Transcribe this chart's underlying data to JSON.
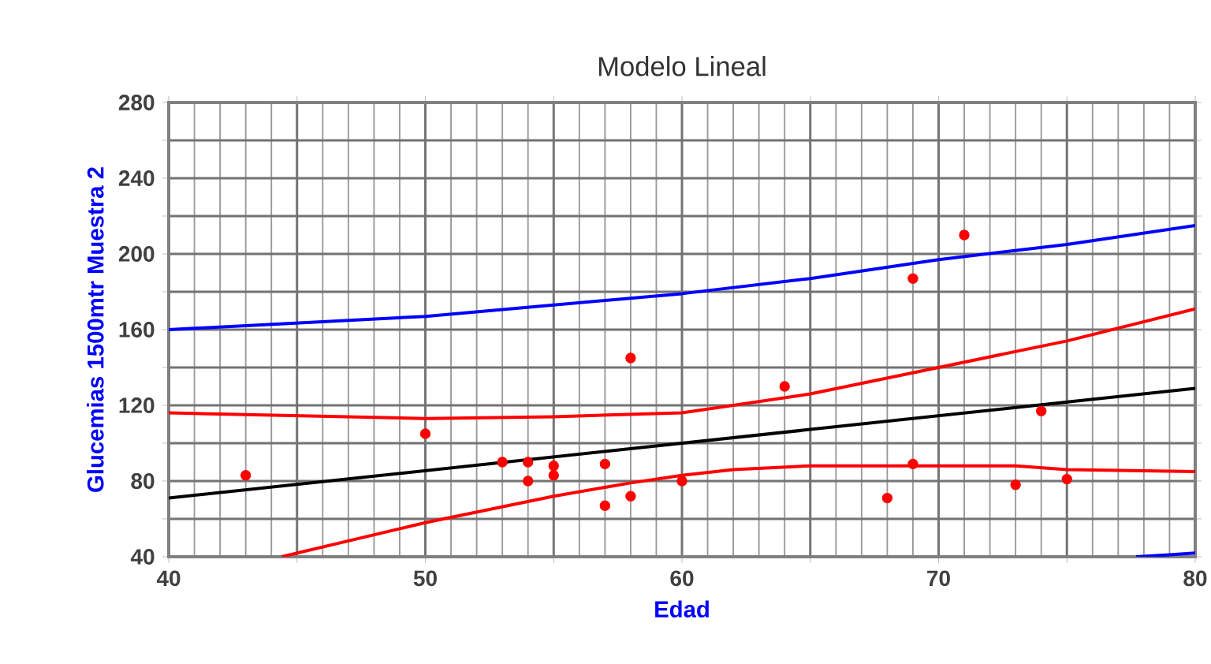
{
  "chart_data": {
    "type": "line",
    "title": "Modelo Lineal",
    "xlabel": "Edad",
    "ylabel": "Glucemias 1500mtr Muestra 2",
    "xlim": [
      40,
      80
    ],
    "ylim": [
      40,
      280
    ],
    "xticks": [
      40,
      {
        "value": 45,
        "label": null
      },
      50,
      {
        "value": 55,
        "label": null
      },
      60,
      {
        "value": 65,
        "label": null
      },
      70,
      {
        "value": 75,
        "label": null
      },
      80
    ],
    "yticks": [
      40,
      {
        "value": 60,
        "label": null
      },
      80,
      {
        "value": 100,
        "label": null
      },
      120,
      {
        "value": 140,
        "label": null
      },
      160,
      {
        "value": 180,
        "label": null
      },
      200,
      {
        "value": 220,
        "label": null
      },
      240,
      {
        "value": 260,
        "label": null
      },
      280
    ],
    "grid": true,
    "series": [
      {
        "type": "scatter",
        "color": "#ff0000",
        "x": [
          43,
          50,
          53,
          54,
          54,
          55,
          55,
          57,
          57,
          58,
          58,
          60,
          64,
          68,
          69,
          69,
          71,
          73,
          74,
          75
        ],
        "values": [
          83,
          105,
          90,
          90,
          80,
          88,
          83,
          89,
          67,
          145,
          72,
          80,
          130,
          71,
          187,
          89,
          210,
          78,
          117,
          81
        ]
      },
      {
        "color": "#000000",
        "x": [
          40,
          80
        ],
        "values": [
          71,
          129
        ]
      },
      {
        "color": "#0000ff",
        "x": [
          40,
          50,
          60,
          65,
          70,
          75,
          80
        ],
        "values": [
          160,
          167,
          179,
          187,
          197,
          205,
          215
        ]
      },
      {
        "color": "#ff0000",
        "x": [
          40,
          50,
          55,
          60,
          65,
          70,
          75,
          80
        ],
        "values": [
          116,
          113,
          114,
          116,
          126,
          140,
          154,
          171
        ]
      },
      {
        "color": "#ff0000",
        "x": [
          44.4,
          50,
          55,
          58,
          60,
          62,
          65,
          70,
          73,
          75,
          80
        ],
        "values": [
          40,
          58,
          72,
          79,
          83,
          86,
          88,
          88,
          88,
          86,
          85
        ]
      },
      {
        "color": "#0000ff",
        "x": [
          77.7,
          79,
          80
        ],
        "values": [
          40,
          41,
          42
        ]
      }
    ]
  }
}
